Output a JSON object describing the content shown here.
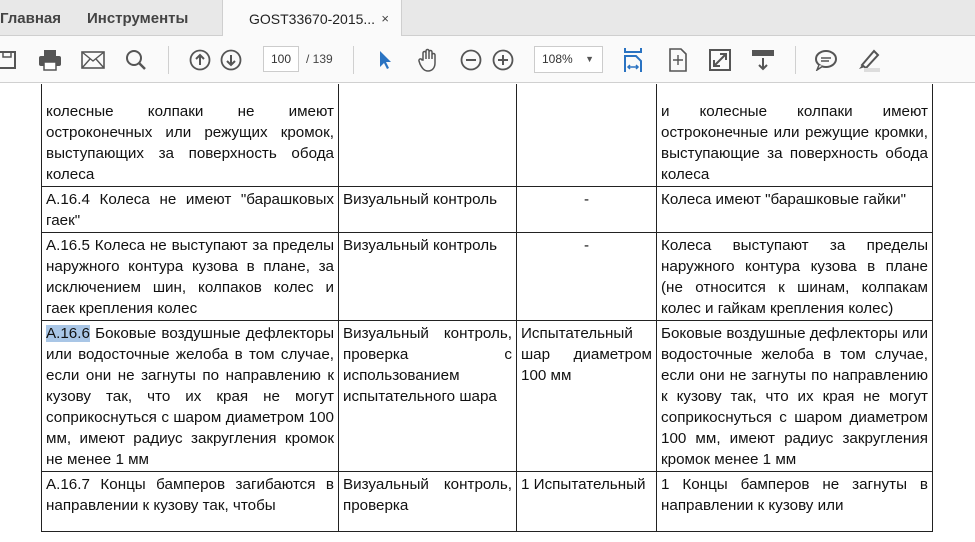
{
  "tabs": {
    "home": "Главная",
    "tools": "Инструменты",
    "document": "GOST33670-2015...",
    "close": "×"
  },
  "toolbar": {
    "page_current": "100",
    "page_total": "/ 139",
    "zoom": "108%"
  },
  "accent": "#2a73c2",
  "table": {
    "rows": [
      {
        "req": "колесные колпаки не имеют остроконечных или режущих кромок, выступающих за поверхность обода колеса",
        "method": "",
        "tool": "",
        "result": "и колесные колпаки имеют остроконечные или режущие кромки, выступающие за поверхность обода колеса"
      },
      {
        "req": "А.16.4 Колеса не имеют \"барашковых гаек\"",
        "method": "Визуальный контроль",
        "tool": "-",
        "result": "Колеса имеют \"барашковые гайки\""
      },
      {
        "req": "А.16.5 Колеса не выступают за пределы наружного контура кузова в плане, за исключением шин, колпаков колес и гаек крепления колес",
        "method": "Визуальный контроль",
        "tool": "-",
        "result": "Колеса выступают за пределы наружного контура кузова в плане (не относится к шинам, колпакам колес и гайкам крепления колес)"
      },
      {
        "req_id": "А.16.6",
        "req": " Боковые воздушные дефлекторы или водосточные желоба в том случае, если они не загнуты по направлению к кузову так, что их края не могут соприкоснуться с шаром диаметром 100 мм, имеют радиус закругления кромок не менее 1 мм",
        "method": "Визуальный контроль, проверка с использованием испытательного шара",
        "tool": "Испытательный шар диаметром 100 мм",
        "result": "Боковые воздушные дефлекторы или водосточные желоба в том случае, если они не загнуты по направлению к кузову так, что их края не могут соприкоснуться с шаром диаметром 100 мм, имеют радиус закругления кромок менее 1 мм"
      },
      {
        "req": "А.16.7 Концы бамперов загибаются в направлении к кузову так, чтобы",
        "method": "Визуальный контроль, проверка",
        "tool": "1 Испытательный",
        "result": "1 Концы бамперов не загнуты в направлении к кузову или"
      }
    ]
  }
}
